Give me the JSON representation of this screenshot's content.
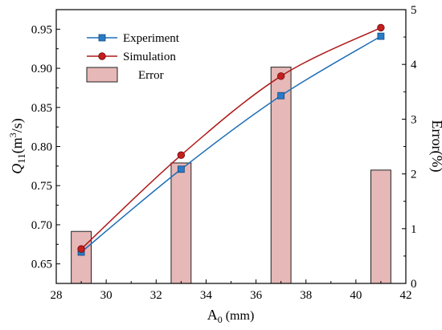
{
  "chart_data": {
    "type": "bar+line",
    "x_axis": {
      "label_main": "A",
      "label_sub": "0",
      "label_unit": " (mm)",
      "range": [
        28,
        42
      ],
      "ticks": [
        28,
        30,
        32,
        34,
        36,
        38,
        40,
        42
      ]
    },
    "y_left": {
      "label_main": "Q",
      "label_sub": "11",
      "label_unit_open": "(m",
      "label_sup": "3",
      "label_unit_close": "/s)",
      "range": [
        0.625,
        0.975
      ],
      "ticks": [
        0.65,
        0.7,
        0.75,
        0.8,
        0.85,
        0.9,
        0.95
      ]
    },
    "y_right": {
      "label": "Error(%)",
      "range": [
        0,
        5
      ],
      "ticks": [
        0,
        1,
        2,
        3,
        4,
        5
      ]
    },
    "categories": [
      29,
      33,
      37,
      41
    ],
    "series": [
      {
        "name": "Experiment",
        "type": "line",
        "axis": "left",
        "marker": "square",
        "color": "#1f6fb8",
        "marker_color": "#2a7ac7",
        "x": [
          29,
          33,
          37,
          41
        ],
        "values": [
          0.665,
          0.771,
          0.865,
          0.941
        ]
      },
      {
        "name": "Simulation",
        "type": "line",
        "axis": "left",
        "marker": "circle",
        "color": "#b01818",
        "marker_color": "#c41e1e",
        "x": [
          29,
          33,
          37,
          41
        ],
        "values": [
          0.669,
          0.789,
          0.89,
          0.952
        ]
      },
      {
        "name": "Error",
        "type": "bar",
        "axis": "right",
        "color": "#e6b8b7",
        "edge": "#222222",
        "x": [
          29,
          33,
          37,
          41
        ],
        "values": [
          0.95,
          2.2,
          3.95,
          2.07
        ]
      }
    ],
    "legend_position": "top-left",
    "grid": false
  }
}
